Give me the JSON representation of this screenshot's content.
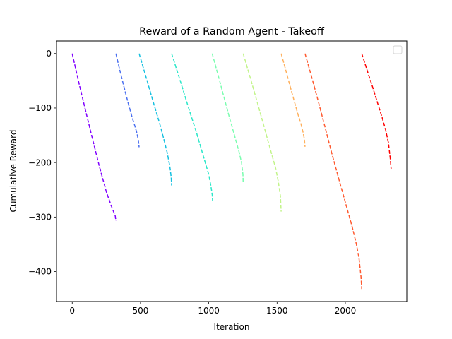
{
  "chart_data": {
    "type": "line",
    "title": "Reward of a Random Agent - Takeoff",
    "xlabel": "Iteration",
    "ylabel": "Cumulative Reward",
    "xlim": [
      -115,
      2450
    ],
    "ylim": [
      -455,
      23
    ],
    "xticks": [
      0,
      500,
      1000,
      1500,
      2000
    ],
    "yticks": [
      0,
      -100,
      -200,
      -300,
      -400
    ],
    "xtick_labels": [
      "0",
      "500",
      "1000",
      "1500",
      "2000"
    ],
    "ytick_labels": [
      "0",
      "−100",
      "−200",
      "−300",
      "−400"
    ],
    "grid": false,
    "legend": {
      "placement": "top-right",
      "entries": []
    },
    "line_style": "dashed",
    "series": [
      {
        "color": "#8000ff",
        "x": [
          0,
          50,
          100,
          150,
          200,
          250,
          290,
          315,
          320
        ],
        "y": [
          0,
          -55,
          -107,
          -158,
          -208,
          -254,
          -282,
          -298,
          -307
        ]
      },
      {
        "color": "#4a6ff0",
        "x": [
          320,
          350,
          380,
          410,
          440,
          460,
          475,
          485,
          490
        ],
        "y": [
          0,
          -32,
          -62,
          -91,
          -118,
          -134,
          -147,
          -160,
          -172
        ]
      },
      {
        "color": "#15c0e0",
        "x": [
          490,
          540,
          590,
          640,
          670,
          695,
          715,
          725,
          728
        ],
        "y": [
          0,
          -43,
          -86,
          -128,
          -156,
          -181,
          -207,
          -227,
          -242
        ]
      },
      {
        "color": "#2ae7c9",
        "x": [
          728,
          790,
          850,
          910,
          960,
          1000,
          1015,
          1025,
          1028
        ],
        "y": [
          0,
          -49,
          -98,
          -145,
          -188,
          -222,
          -242,
          -258,
          -270
        ]
      },
      {
        "color": "#7bfdb0",
        "x": [
          1025,
          1070,
          1110,
          1150,
          1190,
          1220,
          1240,
          1250,
          1252
        ],
        "y": [
          0,
          -41,
          -79,
          -116,
          -152,
          -179,
          -200,
          -222,
          -237
        ]
      },
      {
        "color": "#c2f48a",
        "x": [
          1252,
          1300,
          1350,
          1400,
          1450,
          1490,
          1510,
          1525,
          1530
        ],
        "y": [
          0,
          -41,
          -85,
          -130,
          -175,
          -211,
          -236,
          -262,
          -290
        ]
      },
      {
        "color": "#ffb05c",
        "x": [
          1530,
          1560,
          1590,
          1620,
          1650,
          1675,
          1690,
          1700,
          1705
        ],
        "y": [
          0,
          -27,
          -55,
          -82,
          -109,
          -129,
          -144,
          -157,
          -171
        ]
      },
      {
        "color": "#ff5a30",
        "x": [
          1705,
          1750,
          1800,
          1850,
          1900,
          1950,
          2000,
          2050,
          2080,
          2100,
          2115,
          2120
        ],
        "y": [
          0,
          -40,
          -86,
          -134,
          -182,
          -228,
          -273,
          -318,
          -349,
          -375,
          -410,
          -432
        ]
      },
      {
        "color": "#ff0000",
        "x": [
          2120,
          2160,
          2200,
          2240,
          2270,
          2295,
          2315,
          2330,
          2335
        ],
        "y": [
          0,
          -31,
          -62,
          -94,
          -118,
          -140,
          -163,
          -195,
          -212
        ]
      }
    ]
  }
}
